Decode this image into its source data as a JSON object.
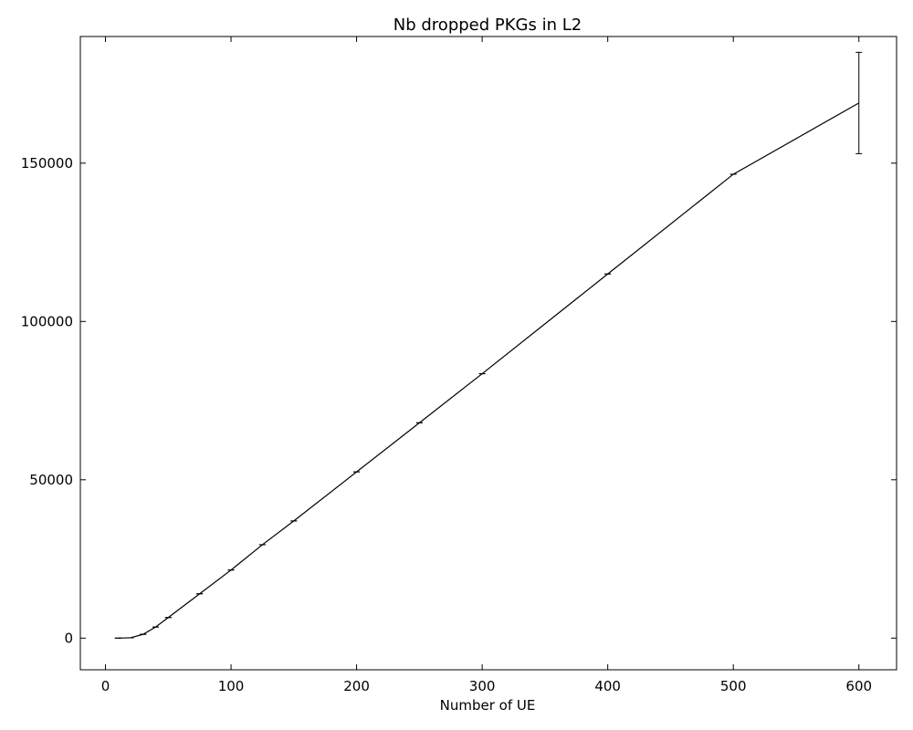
{
  "chart_data": {
    "type": "line",
    "title": "Nb dropped PKGs in L2",
    "xlabel": "Number of UE",
    "ylabel": "",
    "xlim": [
      -20,
      630
    ],
    "ylim": [
      -10000,
      190000
    ],
    "xticks": [
      0,
      100,
      200,
      300,
      400,
      500,
      600
    ],
    "yticks": [
      0,
      50000,
      100000,
      150000
    ],
    "grid": false,
    "series": [
      {
        "x": [
          10,
          20,
          30,
          40,
          50,
          75,
          100,
          125,
          150,
          200,
          250,
          300,
          400,
          500,
          600
        ],
        "y": [
          0,
          100,
          1200,
          3500,
          6500,
          14000,
          21500,
          29500,
          37000,
          52500,
          68000,
          83500,
          115000,
          146500,
          169000
        ],
        "yerr": [
          0,
          0,
          0,
          0,
          0,
          0,
          0,
          0,
          0,
          0,
          0,
          0,
          0,
          0,
          16000
        ],
        "color": "#000000"
      }
    ]
  }
}
